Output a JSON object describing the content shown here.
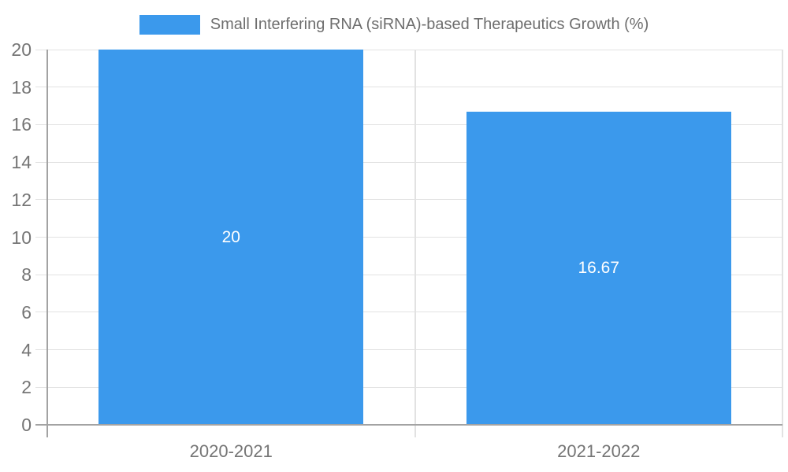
{
  "chart_data": {
    "type": "bar",
    "title": "",
    "legend": {
      "label": "Small Interfering RNA (siRNA)-based Therapeutics Growth (%)",
      "position": "top"
    },
    "categories": [
      "2020-2021",
      "2021-2022"
    ],
    "series": [
      {
        "name": "Small Interfering RNA (siRNA)-based Therapeutics Growth (%)",
        "values": [
          20,
          16.67
        ],
        "value_labels": [
          "20",
          "16.67"
        ]
      }
    ],
    "xlabel": "",
    "ylabel": "",
    "ylim": [
      0,
      20
    ],
    "yticks": [
      0,
      2,
      4,
      6,
      8,
      10,
      12,
      14,
      16,
      18,
      20
    ],
    "grid": true,
    "legend_position": "top"
  },
  "colors": {
    "bar": "#3b99ec",
    "axis": "#a3a3a3",
    "grid": "#e2e2e2",
    "tick_label": "#757575",
    "legend_text": "#6e6e6e",
    "value_label": "#ffffff",
    "background": "#ffffff"
  }
}
